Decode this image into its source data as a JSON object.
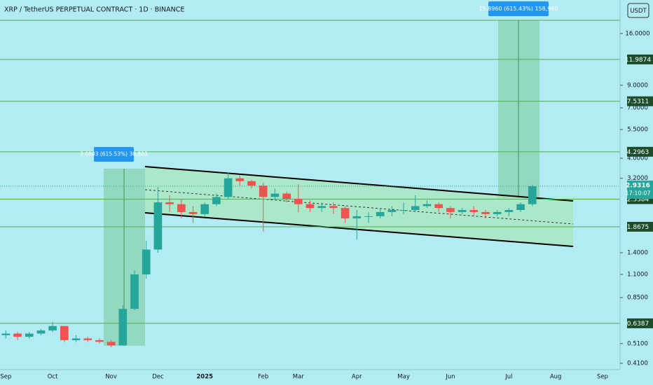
{
  "chart_data": {
    "type": "candlestick",
    "title": "XRP / TetherUS PERPETUAL CONTRACT · 1D · BINANCE",
    "currency": "USDT",
    "countdown": "17:10:07",
    "categories": [
      "Sep",
      null,
      null,
      null,
      "Oct",
      null,
      null,
      null,
      null,
      "Nov",
      null,
      null,
      null,
      "Dec",
      null,
      null,
      null,
      "2025",
      null,
      null,
      null,
      null,
      "Feb",
      null,
      null,
      "Mar",
      null,
      null,
      null,
      null,
      "Apr",
      null,
      null,
      null,
      "May",
      null,
      null,
      null,
      "Jun",
      null,
      null,
      null,
      null,
      "Jul",
      null,
      null,
      null,
      "Aug",
      null,
      null,
      null,
      "Sep",
      null
    ],
    "open": [
      0.56,
      0.57,
      0.55,
      0.57,
      0.59,
      0.62,
      0.53,
      0.54,
      0.53,
      0.52,
      0.5,
      0.75,
      1.1,
      1.45,
      2.45,
      2.4,
      2.2,
      2.15,
      2.4,
      2.6,
      3.2,
      3.1,
      2.95,
      2.6,
      2.7,
      2.55,
      2.4,
      2.3,
      2.35,
      2.3,
      2.05,
      2.1,
      2.1,
      2.2,
      2.25,
      2.25,
      2.35,
      2.4,
      2.3,
      2.2,
      2.25,
      2.2,
      2.15,
      2.2,
      2.25,
      2.4,
      null,
      null,
      null,
      null,
      null,
      null,
      null
    ],
    "high": [
      0.59,
      0.58,
      0.58,
      0.6,
      0.65,
      0.62,
      0.56,
      0.55,
      0.54,
      0.53,
      0.78,
      1.15,
      1.6,
      2.9,
      2.65,
      2.55,
      2.35,
      2.45,
      2.7,
      3.4,
      3.3,
      3.15,
      3.05,
      2.85,
      2.75,
      3.0,
      2.5,
      2.45,
      2.45,
      2.35,
      2.25,
      2.2,
      2.3,
      2.35,
      2.45,
      2.65,
      2.5,
      2.45,
      2.35,
      2.3,
      2.35,
      2.25,
      2.25,
      2.3,
      2.45,
      2.98,
      null,
      null,
      null,
      null,
      null,
      null,
      null
    ],
    "low": [
      0.54,
      0.53,
      0.54,
      0.56,
      0.58,
      0.52,
      0.52,
      0.52,
      0.51,
      0.49,
      0.5,
      0.74,
      1.05,
      1.4,
      2.2,
      2.05,
      1.95,
      2.1,
      2.35,
      2.55,
      2.95,
      2.85,
      1.77,
      2.5,
      2.45,
      2.2,
      2.2,
      2.2,
      2.15,
      1.95,
      1.62,
      1.95,
      2.05,
      2.1,
      2.15,
      2.2,
      2.3,
      2.2,
      2.05,
      2.15,
      2.1,
      2.05,
      2.1,
      2.1,
      2.2,
      2.35,
      null,
      null,
      null,
      null,
      null,
      null,
      null
    ],
    "close": [
      0.57,
      0.55,
      0.57,
      0.59,
      0.62,
      0.53,
      0.54,
      0.53,
      0.52,
      0.5,
      0.75,
      1.1,
      1.45,
      2.45,
      2.4,
      2.2,
      2.15,
      2.4,
      2.6,
      3.2,
      3.1,
      2.95,
      2.6,
      2.7,
      2.55,
      2.4,
      2.3,
      2.35,
      2.3,
      2.05,
      2.1,
      2.1,
      2.2,
      2.25,
      2.25,
      2.35,
      2.4,
      2.3,
      2.2,
      2.25,
      2.2,
      2.15,
      2.2,
      2.25,
      2.4,
      2.93,
      null,
      null,
      null,
      null,
      null,
      null,
      null
    ],
    "up_color": "#26a69a",
    "down_color": "#ef5350",
    "log_scale": true,
    "ylim": [
      0.385,
      23.2
    ],
    "yticks": [
      {
        "value": 16,
        "label": "16.0000"
      },
      {
        "value": 9,
        "label": "9.0000"
      },
      {
        "value": 7,
        "label": "7.0000"
      },
      {
        "value": 5.5,
        "label": "5.5000"
      },
      {
        "value": 4,
        "label": "4.0000"
      },
      {
        "value": 3.2,
        "label": "3.2000"
      },
      {
        "value": 1.4,
        "label": "1.4000"
      },
      {
        "value": 1.1,
        "label": "1.1000"
      },
      {
        "value": 0.85,
        "label": "0.8500"
      },
      {
        "value": 0.51,
        "label": "0.5100"
      },
      {
        "value": 0.41,
        "label": "0.4100"
      }
    ],
    "levels": [
      11.9874,
      7.5311,
      4.2963,
      2.5384,
      1.8675,
      0.6387
    ],
    "level_color": "#4caf50",
    "last_price": 2.9316,
    "measurements": [
      "3.0803 (615.53%) 30,803",
      "15.8960 (615.43%) 158,960"
    ]
  }
}
